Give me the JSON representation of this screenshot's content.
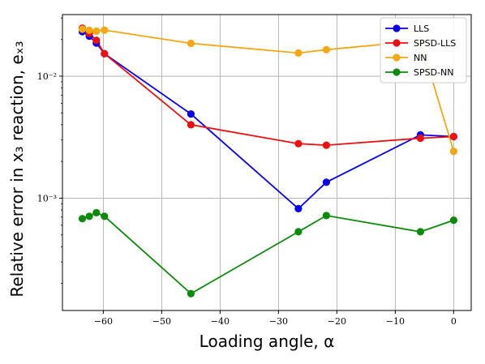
{
  "chart_data": {
    "type": "line",
    "xlabel": "Loading angle, α",
    "ylabel": "Relative error in x₃ reaction, eₓ₃",
    "xlim": [
      -67,
      3
    ],
    "ylim": [
      0.00012,
      0.032
    ],
    "yscale": "log",
    "x_ticks": [
      -60,
      -50,
      -40,
      -30,
      -20,
      -10,
      0
    ],
    "x_tick_labels": [
      "−60",
      "−50",
      "−40",
      "−30",
      "−20",
      "−10",
      "0"
    ],
    "y_ticks": [
      0.001,
      0.01
    ],
    "y_tick_labels": [
      "10⁻³",
      "10⁻²"
    ],
    "grid": true,
    "legend_position": "top-right",
    "colors": {
      "LLS": "#0a00ee",
      "SPSD-LLS": "#ee1010",
      "NN": "#f4a711",
      "SPSD-NN": "#0c8a0c"
    },
    "series": [
      {
        "name": "LLS",
        "x": [
          -63.6,
          -62.4,
          -61.2,
          -59.8,
          -45,
          -26.6,
          -21.8,
          -5.7,
          0
        ],
        "y": [
          0.0232,
          0.0213,
          0.0187,
          0.0153,
          0.0049,
          0.00082,
          0.00135,
          0.0033,
          0.0032
        ]
      },
      {
        "name": "SPSD-LLS",
        "x": [
          -63.6,
          -62.4,
          -61.2,
          -59.8,
          -45,
          -26.6,
          -21.8,
          -5.7,
          0
        ],
        "y": [
          0.0248,
          0.0225,
          0.0197,
          0.0153,
          0.004,
          0.0028,
          0.00272,
          0.0031,
          0.0032
        ]
      },
      {
        "name": "NN",
        "x": [
          -63.6,
          -62.4,
          -61.2,
          -59.8,
          -45,
          -26.6,
          -21.8,
          -5.7,
          0
        ],
        "y": [
          0.0243,
          0.0238,
          0.0234,
          0.0239,
          0.0186,
          0.0155,
          0.0165,
          0.0195,
          0.00242
        ]
      },
      {
        "name": "SPSD-NN",
        "x": [
          -63.6,
          -62.4,
          -61.2,
          -59.8,
          -45,
          -26.6,
          -21.8,
          -5.7,
          0
        ],
        "y": [
          0.00068,
          0.00071,
          0.00076,
          0.00071,
          0.000165,
          0.00053,
          0.00072,
          0.00053,
          0.00066
        ]
      }
    ]
  }
}
